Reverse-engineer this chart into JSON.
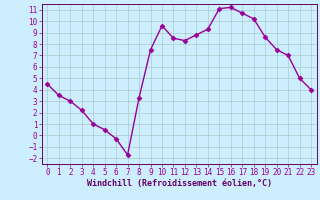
{
  "hours": [
    0,
    1,
    2,
    3,
    4,
    5,
    6,
    7,
    8,
    9,
    10,
    11,
    12,
    13,
    14,
    15,
    16,
    17,
    18,
    19,
    20,
    21,
    22,
    23
  ],
  "values": [
    4.5,
    3.5,
    3.0,
    2.2,
    1.0,
    0.5,
    -0.3,
    -1.7,
    3.3,
    7.5,
    9.6,
    8.5,
    8.3,
    8.8,
    9.3,
    11.1,
    11.2,
    10.7,
    10.2,
    8.6,
    7.5,
    7.0,
    5.0,
    4.0
  ],
  "line_color": "#990099",
  "marker": "D",
  "marker_size": 2.5,
  "bg_color": "#cceeff",
  "grid_color": "#aacccc",
  "xlabel": "Windchill (Refroidissement éolien,°C)",
  "xlabel_color": "#660066",
  "tick_color": "#990099",
  "spine_color": "#660066",
  "ylim": [
    -2,
    11
  ],
  "xlim": [
    0,
    23
  ],
  "yticks": [
    -2,
    -1,
    0,
    1,
    2,
    3,
    4,
    5,
    6,
    7,
    8,
    9,
    10,
    11
  ],
  "xticks": [
    0,
    1,
    2,
    3,
    4,
    5,
    6,
    7,
    8,
    9,
    10,
    11,
    12,
    13,
    14,
    15,
    16,
    17,
    18,
    19,
    20,
    21,
    22,
    23
  ],
  "tick_fontsize": 5.5,
  "xlabel_fontsize": 6.0,
  "xlabel_fontweight": "bold"
}
